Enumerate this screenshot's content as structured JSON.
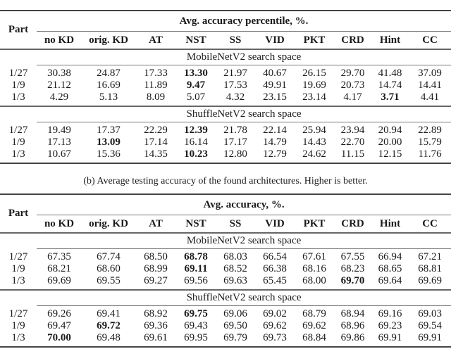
{
  "columns": [
    "no KD",
    "orig. KD",
    "AT",
    "NST",
    "SS",
    "VID",
    "PKT",
    "CRD",
    "Hint",
    "CC"
  ],
  "part_label": "Part",
  "table_a": {
    "header": "Avg. accuracy percentile, %.",
    "sections": [
      {
        "title": "MobileNetV2 search space",
        "rows": [
          {
            "part": "1/27",
            "values": [
              "30.38",
              "24.87",
              "17.33",
              "13.30",
              "21.97",
              "40.67",
              "26.15",
              "29.70",
              "41.48",
              "37.09"
            ],
            "bold": [
              3
            ]
          },
          {
            "part": "1/9",
            "values": [
              "21.12",
              "16.69",
              "11.89",
              "9.47",
              "17.53",
              "49.91",
              "19.69",
              "20.73",
              "14.74",
              "14.41"
            ],
            "bold": [
              3
            ]
          },
          {
            "part": "1/3",
            "values": [
              "4.29",
              "5.13",
              "8.09",
              "5.07",
              "4.32",
              "23.15",
              "23.14",
              "4.17",
              "3.71",
              "4.41"
            ],
            "bold": [
              8
            ]
          }
        ]
      },
      {
        "title": "ShuffleNetV2 search space",
        "rows": [
          {
            "part": "1/27",
            "values": [
              "19.49",
              "17.37",
              "22.29",
              "12.39",
              "21.78",
              "22.14",
              "25.94",
              "23.94",
              "20.94",
              "22.89"
            ],
            "bold": [
              3
            ]
          },
          {
            "part": "1/9",
            "values": [
              "17.13",
              "13.09",
              "17.14",
              "16.14",
              "17.17",
              "14.79",
              "14.43",
              "22.70",
              "20.00",
              "15.79"
            ],
            "bold": [
              1
            ]
          },
          {
            "part": "1/3",
            "values": [
              "10.67",
              "15.36",
              "14.35",
              "10.23",
              "12.80",
              "12.79",
              "24.62",
              "11.15",
              "12.15",
              "11.76"
            ],
            "bold": [
              3
            ]
          }
        ]
      }
    ]
  },
  "caption_b": "(b) Average testing accuracy of the found architectures. Higher is better.",
  "table_b": {
    "header": "Avg. accuracy, %.",
    "sections": [
      {
        "title": "MobileNetV2 search space",
        "rows": [
          {
            "part": "1/27",
            "values": [
              "67.35",
              "67.74",
              "68.50",
              "68.78",
              "68.03",
              "66.54",
              "67.61",
              "67.55",
              "66.94",
              "67.21"
            ],
            "bold": [
              3
            ]
          },
          {
            "part": "1/9",
            "values": [
              "68.21",
              "68.60",
              "68.99",
              "69.11",
              "68.52",
              "66.38",
              "68.16",
              "68.23",
              "68.65",
              "68.81"
            ],
            "bold": [
              3
            ]
          },
          {
            "part": "1/3",
            "values": [
              "69.69",
              "69.55",
              "69.27",
              "69.56",
              "69.63",
              "65.45",
              "68.00",
              "69.70",
              "69.64",
              "69.69"
            ],
            "bold": [
              7
            ]
          }
        ]
      },
      {
        "title": "ShuffleNetV2 search space",
        "rows": [
          {
            "part": "1/27",
            "values": [
              "69.26",
              "69.41",
              "68.92",
              "69.75",
              "69.06",
              "69.02",
              "68.79",
              "68.94",
              "69.16",
              "69.03"
            ],
            "bold": [
              3
            ]
          },
          {
            "part": "1/9",
            "values": [
              "69.47",
              "69.72",
              "69.36",
              "69.43",
              "69.50",
              "69.62",
              "69.62",
              "68.96",
              "69.23",
              "69.54"
            ],
            "bold": [
              1
            ]
          },
          {
            "part": "1/3",
            "values": [
              "70.00",
              "69.48",
              "69.61",
              "69.95",
              "69.79",
              "69.73",
              "68.84",
              "69.86",
              "69.91",
              "69.91"
            ],
            "bold": [
              0
            ]
          }
        ]
      }
    ]
  }
}
